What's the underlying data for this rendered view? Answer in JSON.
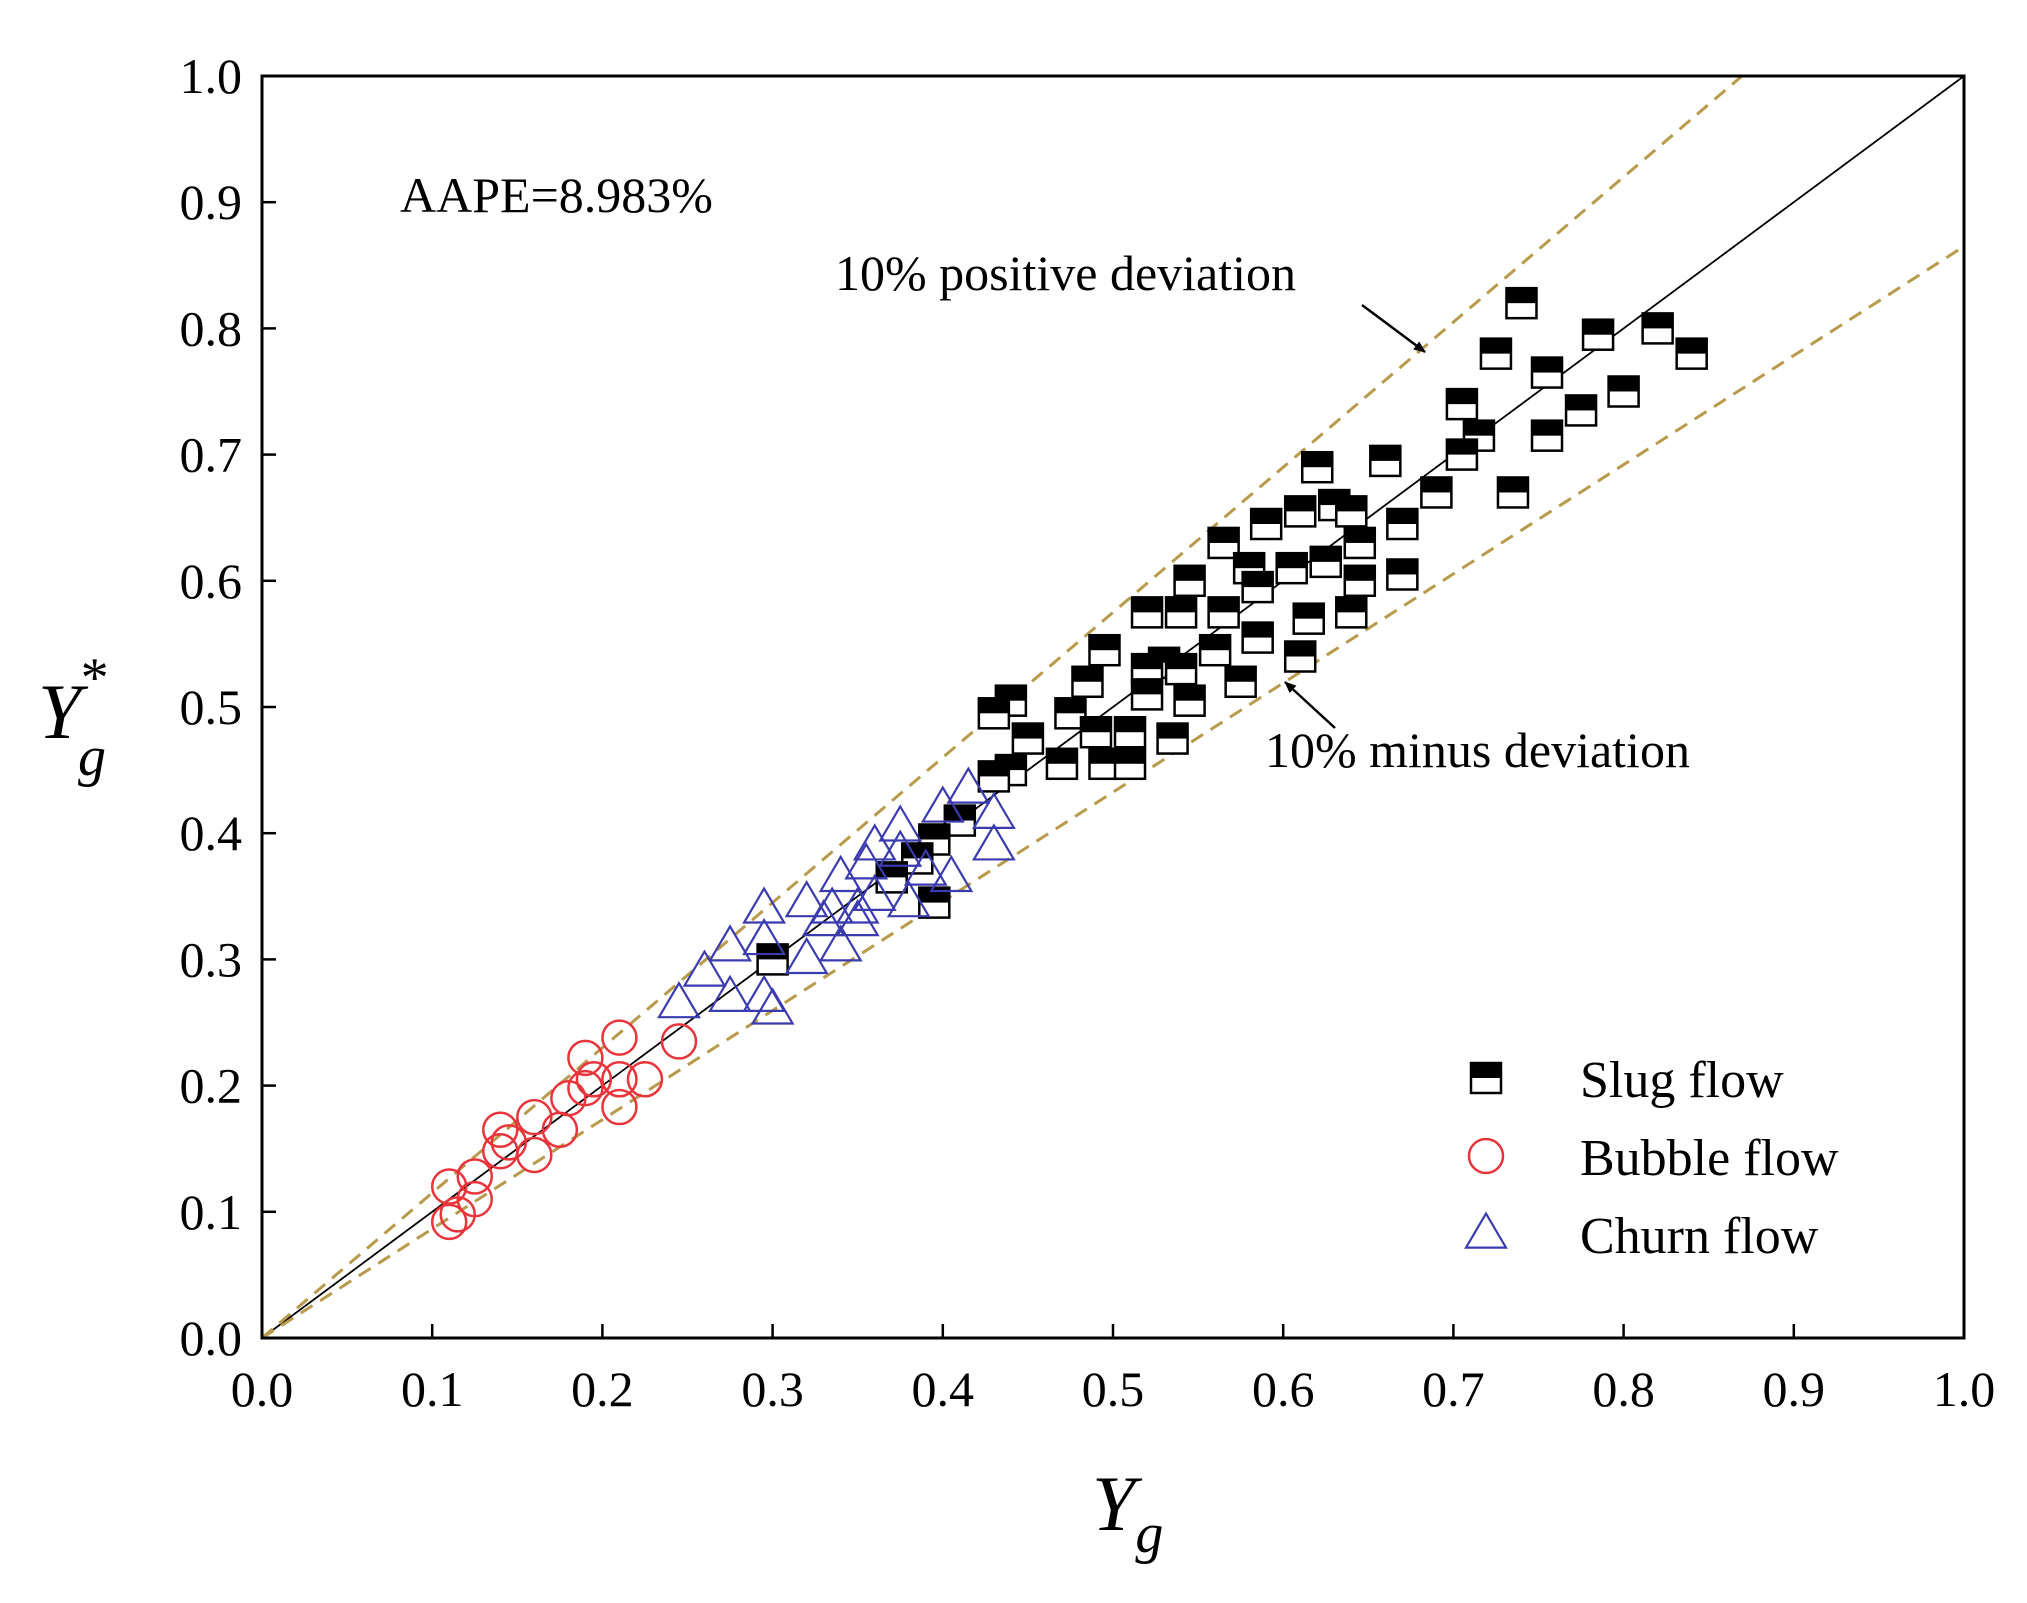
{
  "chart_data": {
    "type": "scatter",
    "xlabel": "Y",
    "xlabel_sub": "g",
    "ylabel": "Y",
    "ylabel_sup": "*",
    "ylabel_sub": "g",
    "xlim": [
      0.0,
      1.0
    ],
    "ylim": [
      0.0,
      1.0
    ],
    "x_ticks": [
      "0.0",
      "0.1",
      "0.2",
      "0.3",
      "0.4",
      "0.5",
      "0.6",
      "0.7",
      "0.8",
      "0.9",
      "1.0"
    ],
    "y_ticks": [
      "0.0",
      "0.1",
      "0.2",
      "0.3",
      "0.4",
      "0.5",
      "0.6",
      "0.7",
      "0.8",
      "0.9",
      "1.0"
    ],
    "grid": false,
    "legend_position": "bottom-right",
    "annotations": {
      "aape": "AAPE=8.983%",
      "positive": "10% positive deviation",
      "minus": "10% minus deviation"
    },
    "reference_lines": [
      {
        "name": "perfect agreement",
        "slope": 1.0,
        "style": "solid"
      },
      {
        "name": "10% positive deviation",
        "slope": 1.15,
        "style": "dashed"
      },
      {
        "name": "10% minus deviation",
        "slope": 0.865,
        "style": "dashed"
      }
    ],
    "colors": {
      "slug": "#000000",
      "bubble": "#e8343a",
      "churn": "#3b3bb0",
      "dashed": "#b89a4a",
      "diagonal": "#000000"
    },
    "series": [
      {
        "name": "Slug flow",
        "marker": "half-filled-square",
        "points": [
          [
            0.74,
            0.82
          ],
          [
            0.82,
            0.8
          ],
          [
            0.785,
            0.795
          ],
          [
            0.84,
            0.78
          ],
          [
            0.725,
            0.78
          ],
          [
            0.755,
            0.765
          ],
          [
            0.8,
            0.75
          ],
          [
            0.705,
            0.74
          ],
          [
            0.775,
            0.735
          ],
          [
            0.715,
            0.715
          ],
          [
            0.755,
            0.715
          ],
          [
            0.705,
            0.7
          ],
          [
            0.62,
            0.69
          ],
          [
            0.66,
            0.695
          ],
          [
            0.735,
            0.67
          ],
          [
            0.69,
            0.67
          ],
          [
            0.61,
            0.655
          ],
          [
            0.63,
            0.66
          ],
          [
            0.64,
            0.655
          ],
          [
            0.59,
            0.645
          ],
          [
            0.67,
            0.645
          ],
          [
            0.565,
            0.63
          ],
          [
            0.645,
            0.63
          ],
          [
            0.605,
            0.61
          ],
          [
            0.625,
            0.615
          ],
          [
            0.58,
            0.61
          ],
          [
            0.67,
            0.605
          ],
          [
            0.545,
            0.6
          ],
          [
            0.585,
            0.595
          ],
          [
            0.645,
            0.6
          ],
          [
            0.565,
            0.575
          ],
          [
            0.52,
            0.575
          ],
          [
            0.54,
            0.575
          ],
          [
            0.615,
            0.57
          ],
          [
            0.64,
            0.575
          ],
          [
            0.585,
            0.555
          ],
          [
            0.56,
            0.545
          ],
          [
            0.495,
            0.545
          ],
          [
            0.61,
            0.54
          ],
          [
            0.53,
            0.535
          ],
          [
            0.52,
            0.53
          ],
          [
            0.54,
            0.53
          ],
          [
            0.485,
            0.52
          ],
          [
            0.575,
            0.52
          ],
          [
            0.52,
            0.51
          ],
          [
            0.44,
            0.505
          ],
          [
            0.43,
            0.495
          ],
          [
            0.475,
            0.495
          ],
          [
            0.545,
            0.505
          ],
          [
            0.49,
            0.48
          ],
          [
            0.45,
            0.475
          ],
          [
            0.51,
            0.48
          ],
          [
            0.535,
            0.475
          ],
          [
            0.47,
            0.455
          ],
          [
            0.495,
            0.455
          ],
          [
            0.51,
            0.455
          ],
          [
            0.44,
            0.45
          ],
          [
            0.43,
            0.445
          ],
          [
            0.41,
            0.41
          ],
          [
            0.395,
            0.395
          ],
          [
            0.385,
            0.38
          ],
          [
            0.37,
            0.365
          ],
          [
            0.395,
            0.345
          ],
          [
            0.3,
            0.3
          ]
        ]
      },
      {
        "name": "Bubble flow",
        "marker": "open-circle",
        "points": [
          [
            0.245,
            0.235
          ],
          [
            0.21,
            0.238
          ],
          [
            0.19,
            0.222
          ],
          [
            0.21,
            0.205
          ],
          [
            0.225,
            0.205
          ],
          [
            0.195,
            0.205
          ],
          [
            0.19,
            0.198
          ],
          [
            0.18,
            0.19
          ],
          [
            0.21,
            0.183
          ],
          [
            0.16,
            0.175
          ],
          [
            0.175,
            0.165
          ],
          [
            0.14,
            0.165
          ],
          [
            0.145,
            0.155
          ],
          [
            0.14,
            0.148
          ],
          [
            0.16,
            0.145
          ],
          [
            0.125,
            0.128
          ],
          [
            0.11,
            0.12
          ],
          [
            0.125,
            0.11
          ],
          [
            0.115,
            0.098
          ],
          [
            0.11,
            0.092
          ]
        ]
      },
      {
        "name": "Churn flow",
        "marker": "open-triangle",
        "points": [
          [
            0.415,
            0.435
          ],
          [
            0.4,
            0.42
          ],
          [
            0.43,
            0.415
          ],
          [
            0.375,
            0.405
          ],
          [
            0.36,
            0.39
          ],
          [
            0.43,
            0.39
          ],
          [
            0.375,
            0.385
          ],
          [
            0.355,
            0.375
          ],
          [
            0.34,
            0.365
          ],
          [
            0.405,
            0.365
          ],
          [
            0.39,
            0.37
          ],
          [
            0.36,
            0.35
          ],
          [
            0.32,
            0.345
          ],
          [
            0.295,
            0.34
          ],
          [
            0.335,
            0.34
          ],
          [
            0.35,
            0.34
          ],
          [
            0.38,
            0.345
          ],
          [
            0.33,
            0.33
          ],
          [
            0.35,
            0.33
          ],
          [
            0.295,
            0.315
          ],
          [
            0.34,
            0.31
          ],
          [
            0.275,
            0.31
          ],
          [
            0.32,
            0.3
          ],
          [
            0.26,
            0.29
          ],
          [
            0.275,
            0.27
          ],
          [
            0.295,
            0.27
          ],
          [
            0.245,
            0.265
          ],
          [
            0.3,
            0.26
          ]
        ]
      }
    ]
  }
}
